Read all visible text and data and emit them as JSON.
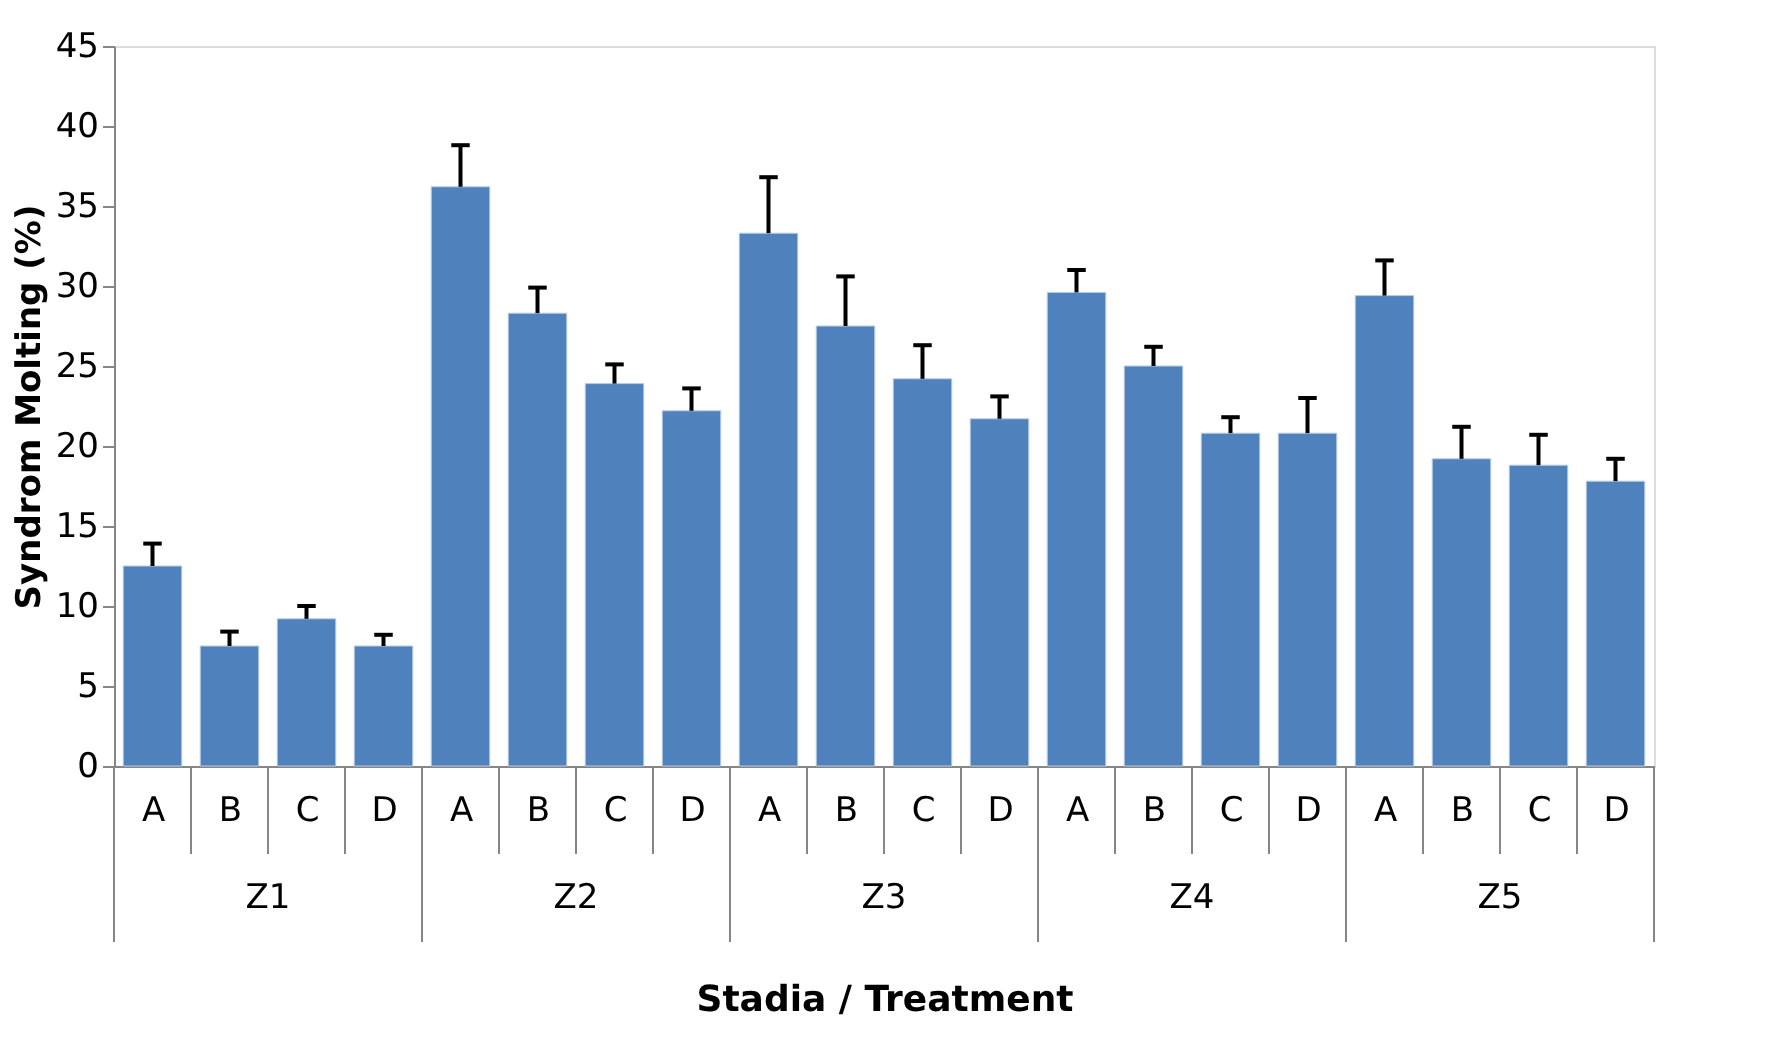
{
  "chart_data": {
    "type": "bar",
    "xlabel": "Stadia / Treatment",
    "ylabel": "Syndrom Molting (%)",
    "categories": [
      "A",
      "B",
      "C",
      "D",
      "A",
      "B",
      "C",
      "D",
      "A",
      "B",
      "C",
      "D",
      "A",
      "B",
      "C",
      "D",
      "A",
      "B",
      "C",
      "D"
    ],
    "annotations": [
      "Z1",
      "Z2",
      "Z3",
      "Z4",
      "Z5"
    ],
    "values": [
      12.5,
      7.5,
      9.2,
      7.5,
      36.2,
      28.3,
      23.9,
      22.2,
      33.3,
      27.5,
      24.2,
      21.7,
      29.6,
      25.0,
      20.8,
      20.8,
      29.4,
      19.2,
      18.8,
      17.8
    ],
    "errors": [
      [
        12.5,
        13.9
      ],
      [
        7.5,
        8.4
      ],
      [
        9.2,
        10.0
      ],
      [
        7.5,
        8.2
      ],
      [
        36.2,
        38.8
      ],
      [
        28.3,
        29.9
      ],
      [
        23.9,
        25.1
      ],
      [
        22.2,
        23.6
      ],
      [
        33.3,
        36.8
      ],
      [
        27.5,
        30.6
      ],
      [
        24.2,
        26.3
      ],
      [
        21.7,
        23.1
      ],
      [
        29.6,
        31.0
      ],
      [
        25.0,
        26.2
      ],
      [
        20.8,
        21.8
      ],
      [
        20.8,
        23.0
      ],
      [
        29.4,
        31.6
      ],
      [
        19.2,
        21.2
      ],
      [
        18.8,
        20.7
      ],
      [
        17.8,
        19.2
      ]
    ],
    "color": "#4f81bd",
    "ylim": [
      0,
      45
    ],
    "yticks": [
      0,
      5,
      10,
      15,
      20,
      25,
      30,
      35,
      40,
      45
    ],
    "grid": false
  }
}
